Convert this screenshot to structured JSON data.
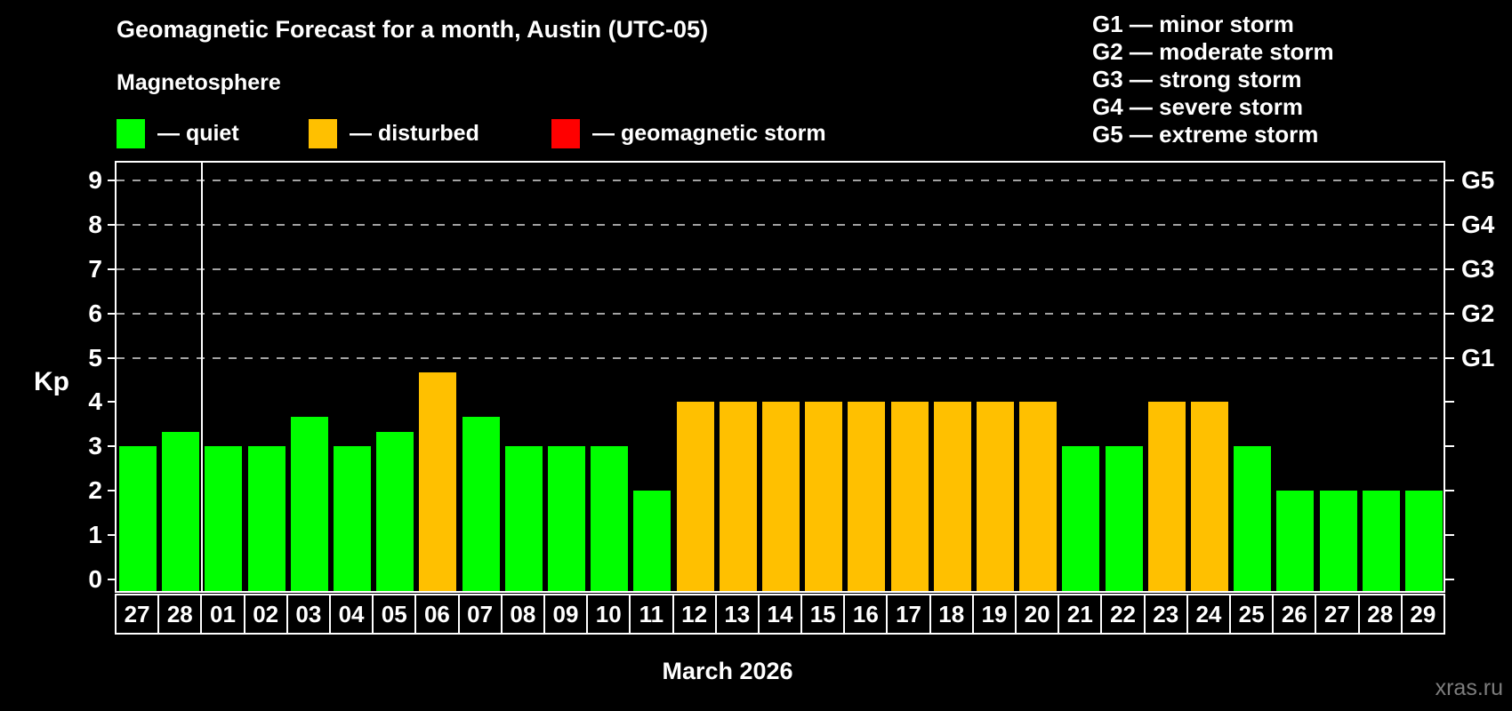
{
  "header": {
    "title": "Geomagnetic Forecast for a month, Austin (UTC-05)",
    "subtitle": "Magnetosphere"
  },
  "legend": {
    "quiet_label": "— quiet",
    "disturbed_label": "— disturbed",
    "storm_label": "— geomagnetic storm"
  },
  "storm_scale_legend": {
    "g1": "G1 — minor storm",
    "g2": "G2 — moderate storm",
    "g3": "G3 — strong storm",
    "g4": "G4 — severe storm",
    "g5": "G5 — extreme storm"
  },
  "watermark": "xras.ru",
  "chart_data": {
    "type": "bar",
    "title": "Geomagnetic Forecast for a month, Austin (UTC-05)",
    "xlabel": "March 2026",
    "ylabel": "Kp",
    "ylim": [
      0,
      9
    ],
    "yticks": [
      0,
      1,
      2,
      3,
      4,
      5,
      6,
      7,
      8,
      9
    ],
    "gridlines_at_kp": [
      5,
      6,
      7,
      8,
      9
    ],
    "grid_style": "dashed",
    "legend_position": "top",
    "right_axis_labels": [
      {
        "kp": 5,
        "text": "G1"
      },
      {
        "kp": 6,
        "text": "G2"
      },
      {
        "kp": 7,
        "text": "G3"
      },
      {
        "kp": 8,
        "text": "G4"
      },
      {
        "kp": 9,
        "text": "G5"
      }
    ],
    "status_colors": {
      "quiet": "#00ff00",
      "disturbed": "#ffc000",
      "storm": "#ff0000"
    },
    "month_separator_after_bar_index": 2,
    "bars": [
      {
        "day": "27",
        "kp": 3,
        "status": "quiet"
      },
      {
        "day": "28",
        "kp": 3.33,
        "status": "quiet"
      },
      {
        "day": "01",
        "kp": 3,
        "status": "quiet"
      },
      {
        "day": "02",
        "kp": 3,
        "status": "quiet"
      },
      {
        "day": "03",
        "kp": 3.67,
        "status": "quiet"
      },
      {
        "day": "04",
        "kp": 3,
        "status": "quiet"
      },
      {
        "day": "05",
        "kp": 3.33,
        "status": "quiet"
      },
      {
        "day": "06",
        "kp": 4.67,
        "status": "disturbed"
      },
      {
        "day": "07",
        "kp": 3.67,
        "status": "quiet"
      },
      {
        "day": "08",
        "kp": 3,
        "status": "quiet"
      },
      {
        "day": "09",
        "kp": 3,
        "status": "quiet"
      },
      {
        "day": "10",
        "kp": 3,
        "status": "quiet"
      },
      {
        "day": "11",
        "kp": 2,
        "status": "quiet"
      },
      {
        "day": "12",
        "kp": 4,
        "status": "disturbed"
      },
      {
        "day": "13",
        "kp": 4,
        "status": "disturbed"
      },
      {
        "day": "14",
        "kp": 4,
        "status": "disturbed"
      },
      {
        "day": "15",
        "kp": 4,
        "status": "disturbed"
      },
      {
        "day": "16",
        "kp": 4,
        "status": "disturbed"
      },
      {
        "day": "17",
        "kp": 4,
        "status": "disturbed"
      },
      {
        "day": "18",
        "kp": 4,
        "status": "disturbed"
      },
      {
        "day": "19",
        "kp": 4,
        "status": "disturbed"
      },
      {
        "day": "20",
        "kp": 4,
        "status": "disturbed"
      },
      {
        "day": "21",
        "kp": 3,
        "status": "quiet"
      },
      {
        "day": "22",
        "kp": 3,
        "status": "quiet"
      },
      {
        "day": "23",
        "kp": 4,
        "status": "disturbed"
      },
      {
        "day": "24",
        "kp": 4,
        "status": "disturbed"
      },
      {
        "day": "25",
        "kp": 3,
        "status": "quiet"
      },
      {
        "day": "26",
        "kp": 2,
        "status": "quiet"
      },
      {
        "day": "27",
        "kp": 2,
        "status": "quiet"
      },
      {
        "day": "28",
        "kp": 2,
        "status": "quiet"
      },
      {
        "day": "29",
        "kp": 2,
        "status": "quiet"
      }
    ]
  }
}
